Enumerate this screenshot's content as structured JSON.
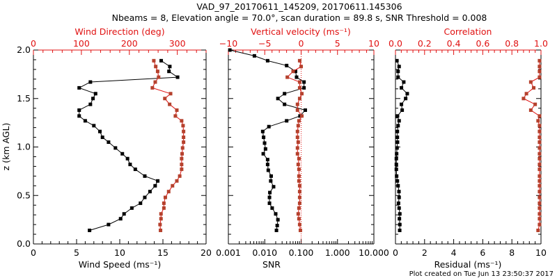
{
  "title_line1": "VAD_97_20170611_145209, 20170611.145306",
  "title_line2": "Nbeams = 8, Elevation angle = 70.0°, scan duration = 89.8 s, SNR Threshold = 0.008",
  "footer": "Plot created on Tue Jun 13 23:50:37 2017",
  "colors": {
    "primary": "#000000",
    "secondary_axis": "#e01010",
    "secondary_marker": "#b5412d"
  },
  "chart_data": [
    {
      "type": "line",
      "panel": "wind",
      "ylabel": "z (km AGL)",
      "ylim": [
        0.0,
        2.0
      ],
      "yticks": [
        "0.0",
        "0.5",
        "1.0",
        "1.5",
        "2.0"
      ],
      "xlabel": "Wind Speed (ms⁻¹)",
      "xlim": [
        0,
        20
      ],
      "xticks": [
        "0",
        "5",
        "10",
        "15",
        "20"
      ],
      "top_xlabel": "Wind Direction (deg)",
      "top_xlim": [
        0,
        360
      ],
      "top_xticks": [
        "0",
        "100",
        "200",
        "300"
      ],
      "series": [
        {
          "name": "Wind Speed",
          "axis": "bottom",
          "color": "#000000",
          "z": [
            1.89,
            1.83,
            1.78,
            1.72,
            1.67,
            1.61,
            1.55,
            1.5,
            1.44,
            1.38,
            1.32,
            1.27,
            1.22,
            1.16,
            1.1,
            1.05,
            0.99,
            0.93,
            0.88,
            0.82,
            0.77,
            0.7,
            0.65,
            0.6,
            0.54,
            0.48,
            0.42,
            0.37,
            0.31,
            0.26,
            0.2,
            0.14
          ],
          "values": [
            14.8,
            15.8,
            15.7,
            16.7,
            6.6,
            5.3,
            7.2,
            6.9,
            6.6,
            5.3,
            5.3,
            6.0,
            7.0,
            7.7,
            8.0,
            8.7,
            9.5,
            10.3,
            10.9,
            11.2,
            11.8,
            12.9,
            14.4,
            14.1,
            13.5,
            12.9,
            12.4,
            11.4,
            10.5,
            10.1,
            8.7,
            6.5
          ]
        },
        {
          "name": "Wind Direction",
          "axis": "top",
          "color": "#b5412d",
          "z": [
            1.89,
            1.83,
            1.78,
            1.72,
            1.67,
            1.61,
            1.55,
            1.5,
            1.44,
            1.38,
            1.32,
            1.27,
            1.22,
            1.16,
            1.1,
            1.05,
            0.99,
            0.93,
            0.88,
            0.82,
            0.77,
            0.7,
            0.65,
            0.6,
            0.54,
            0.48,
            0.42,
            0.37,
            0.31,
            0.26,
            0.2,
            0.14
          ],
          "values": [
            251,
            255,
            259,
            261,
            254,
            248,
            286,
            274,
            284,
            299,
            296,
            309,
            312,
            313,
            313,
            313,
            311,
            310,
            309,
            309,
            309,
            305,
            299,
            290,
            282,
            275,
            272,
            272,
            266,
            266,
            264,
            265
          ]
        }
      ]
    },
    {
      "type": "line",
      "panel": "snr",
      "ylim": [
        0.0,
        2.0
      ],
      "xlabel": "SNR",
      "xscale": "log",
      "xlim": [
        0.001,
        10.0
      ],
      "xticks": [
        "0.001",
        "0.010",
        "0.100",
        "1.000",
        "10.000"
      ],
      "top_xlabel": "Vertical velocity (ms⁻¹)",
      "top_xlim": [
        -10,
        10
      ],
      "top_xticks": [
        "−10",
        "−5",
        "0",
        "5",
        "10"
      ],
      "reference_line": {
        "axis": "top",
        "value": 0,
        "style": "dotted"
      },
      "series": [
        {
          "name": "SNR",
          "axis": "bottom",
          "color": "#000000",
          "z": [
            2.0,
            1.94,
            1.89,
            1.84,
            1.78,
            1.72,
            1.67,
            1.61,
            1.55,
            1.5,
            1.44,
            1.38,
            1.32,
            1.27,
            1.21,
            1.16,
            1.1,
            1.04,
            0.98,
            0.93,
            0.87,
            0.82,
            0.76,
            0.7,
            0.65,
            0.59,
            0.53,
            0.48,
            0.42,
            0.37,
            0.31,
            0.25,
            0.19,
            0.14
          ],
          "values": [
            0.0011,
            0.0052,
            0.012,
            0.04,
            0.07,
            0.075,
            0.12,
            0.12,
            0.035,
            0.023,
            0.035,
            0.13,
            0.093,
            0.04,
            0.013,
            0.0088,
            0.0093,
            0.0099,
            0.0105,
            0.0091,
            0.012,
            0.012,
            0.0125,
            0.015,
            0.0146,
            0.0175,
            0.0138,
            0.0135,
            0.0135,
            0.016,
            0.02,
            0.023,
            0.022,
            0.021
          ]
        },
        {
          "name": "Vertical velocity",
          "axis": "top",
          "color": "#b5412d",
          "z": [
            1.89,
            1.83,
            1.78,
            1.72,
            1.67,
            1.61,
            1.55,
            1.5,
            1.44,
            1.38,
            1.32,
            1.27,
            1.22,
            1.16,
            1.1,
            1.05,
            0.99,
            0.93,
            0.88,
            0.82,
            0.77,
            0.7,
            0.65,
            0.6,
            0.54,
            0.48,
            0.42,
            0.37,
            0.31,
            0.26,
            0.2,
            0.14
          ],
          "values": [
            -0.2,
            0.0,
            -1.1,
            -1.9,
            -0.2,
            -0.2,
            0.1,
            -0.2,
            -0.5,
            -0.5,
            0.1,
            -0.3,
            -0.4,
            -0.5,
            -0.5,
            -0.4,
            -0.5,
            -0.5,
            -0.3,
            -0.4,
            -0.3,
            -0.3,
            -0.3,
            -0.2,
            -0.2,
            -0.2,
            -0.2,
            -0.3,
            -0.4,
            -0.3,
            -0.2,
            -0.1
          ]
        }
      ]
    },
    {
      "type": "line",
      "panel": "residual",
      "ylim": [
        0.0,
        2.0
      ],
      "xlabel": "Residual (ms⁻¹)",
      "xlim": [
        0,
        10
      ],
      "xticks": [
        "0",
        "2",
        "4",
        "6",
        "8",
        "10"
      ],
      "top_xlabel": "Correlation",
      "top_xlim": [
        0.0,
        1.0
      ],
      "top_xticks": [
        "0.0",
        "0.2",
        "0.4",
        "0.6",
        "0.8",
        "1.0"
      ],
      "series": [
        {
          "name": "Residual",
          "axis": "bottom",
          "color": "#000000",
          "z": [
            1.89,
            1.83,
            1.78,
            1.72,
            1.67,
            1.61,
            1.55,
            1.5,
            1.44,
            1.38,
            1.32,
            1.27,
            1.22,
            1.16,
            1.1,
            1.05,
            0.99,
            0.93,
            0.88,
            0.82,
            0.77,
            0.7,
            0.65,
            0.6,
            0.54,
            0.48,
            0.42,
            0.37,
            0.31,
            0.26,
            0.2,
            0.14
          ],
          "values": [
            0.1,
            0.25,
            0.18,
            0.18,
            0.57,
            0.41,
            0.81,
            0.7,
            0.41,
            0.46,
            0.14,
            0.25,
            0.18,
            0.13,
            0.13,
            0.14,
            0.11,
            0.08,
            0.06,
            0.06,
            0.06,
            0.08,
            0.13,
            0.18,
            0.24,
            0.25,
            0.21,
            0.25,
            0.3,
            0.27,
            0.3,
            0.29
          ]
        },
        {
          "name": "Correlation",
          "axis": "top",
          "color": "#b5412d",
          "z": [
            1.89,
            1.83,
            1.78,
            1.72,
            1.67,
            1.61,
            1.55,
            1.5,
            1.44,
            1.38,
            1.32,
            1.27,
            1.22,
            1.16,
            1.1,
            1.05,
            0.99,
            0.93,
            0.88,
            0.82,
            0.77,
            0.7,
            0.65,
            0.6,
            0.54,
            0.48,
            0.42,
            0.37,
            0.31,
            0.26,
            0.2,
            0.14
          ],
          "values": [
            0.99,
            0.99,
            0.99,
            0.99,
            0.93,
            0.95,
            0.9,
            0.88,
            0.96,
            0.93,
            0.99,
            0.98,
            0.99,
            0.99,
            0.99,
            0.99,
            0.99,
            0.99,
            0.99,
            0.99,
            0.99,
            0.99,
            0.99,
            0.99,
            0.99,
            0.99,
            0.99,
            0.99,
            0.99,
            0.99,
            0.99,
            0.98
          ]
        }
      ]
    }
  ]
}
